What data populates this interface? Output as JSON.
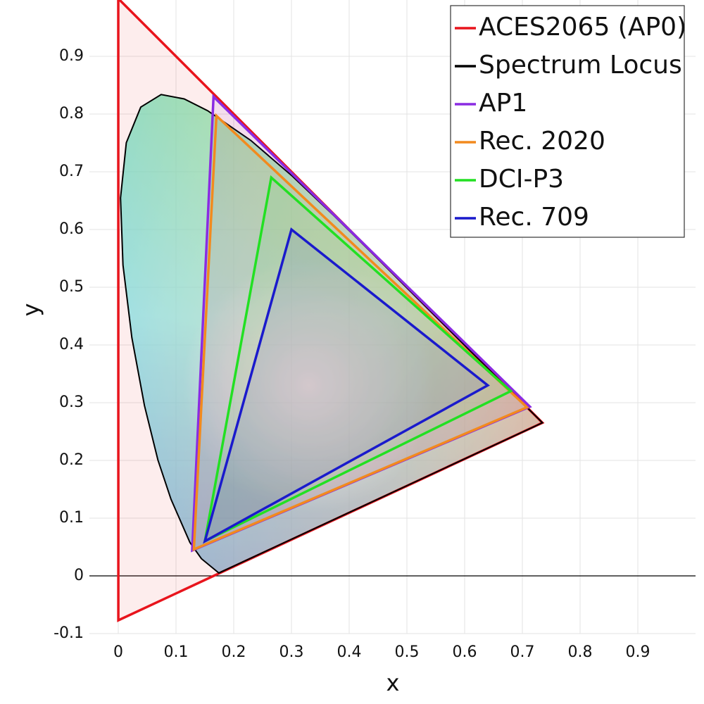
{
  "chart_data": {
    "type": "line",
    "x_label": "x",
    "y_label": "y",
    "xlim": [
      -0.05,
      1.0
    ],
    "ylim": [
      -0.1,
      1.0
    ],
    "xticks": [
      0,
      0.1,
      0.2,
      0.3,
      0.4,
      0.5,
      0.6,
      0.7,
      0.8,
      0.9
    ],
    "yticks": [
      -0.1,
      0,
      0.1,
      0.2,
      0.3,
      0.4,
      0.5,
      0.6,
      0.7,
      0.8,
      0.9
    ],
    "grid": true,
    "legend": "upper right",
    "series": [
      {
        "name": "ACES2065 (AP0)",
        "color": "#e8141c",
        "x": [
          0.7347,
          0,
          0.0001
        ],
        "values": [
          0.2653,
          1,
          -0.077
        ]
      },
      {
        "name": "Spectrum Locus",
        "color": "#000000",
        "x": [
          0.1741,
          0.144,
          0.1241,
          0.0913,
          0.0687,
          0.0454,
          0.0235,
          0.0082,
          0.0039,
          0.0139,
          0.0389,
          0.0743,
          0.1142,
          0.1547,
          0.2296,
          0.3016,
          0.3731,
          0.4441,
          0.5125,
          0.5752,
          0.627,
          0.6915,
          0.7347
        ],
        "values": [
          0.005,
          0.0297,
          0.0578,
          0.1327,
          0.2007,
          0.295,
          0.4127,
          0.5384,
          0.6548,
          0.7502,
          0.812,
          0.8338,
          0.8262,
          0.8059,
          0.7543,
          0.6923,
          0.6245,
          0.5547,
          0.4866,
          0.4242,
          0.3725,
          0.3083,
          0.2653
        ]
      },
      {
        "name": "AP1",
        "color": "#8a2be2",
        "x": [
          0.713,
          0.165,
          0.128
        ],
        "values": [
          0.293,
          0.83,
          0.044
        ]
      },
      {
        "name": "Rec. 2020",
        "color": "#f28a1e",
        "x": [
          0.708,
          0.17,
          0.131
        ],
        "values": [
          0.292,
          0.797,
          0.046
        ]
      },
      {
        "name": "DCI-P3",
        "color": "#22e022",
        "x": [
          0.68,
          0.265,
          0.15
        ],
        "values": [
          0.32,
          0.69,
          0.06
        ]
      },
      {
        "name": "Rec. 709",
        "color": "#1a1acc",
        "x": [
          0.64,
          0.3,
          0.15
        ],
        "values": [
          0.33,
          0.6,
          0.06
        ]
      }
    ]
  }
}
